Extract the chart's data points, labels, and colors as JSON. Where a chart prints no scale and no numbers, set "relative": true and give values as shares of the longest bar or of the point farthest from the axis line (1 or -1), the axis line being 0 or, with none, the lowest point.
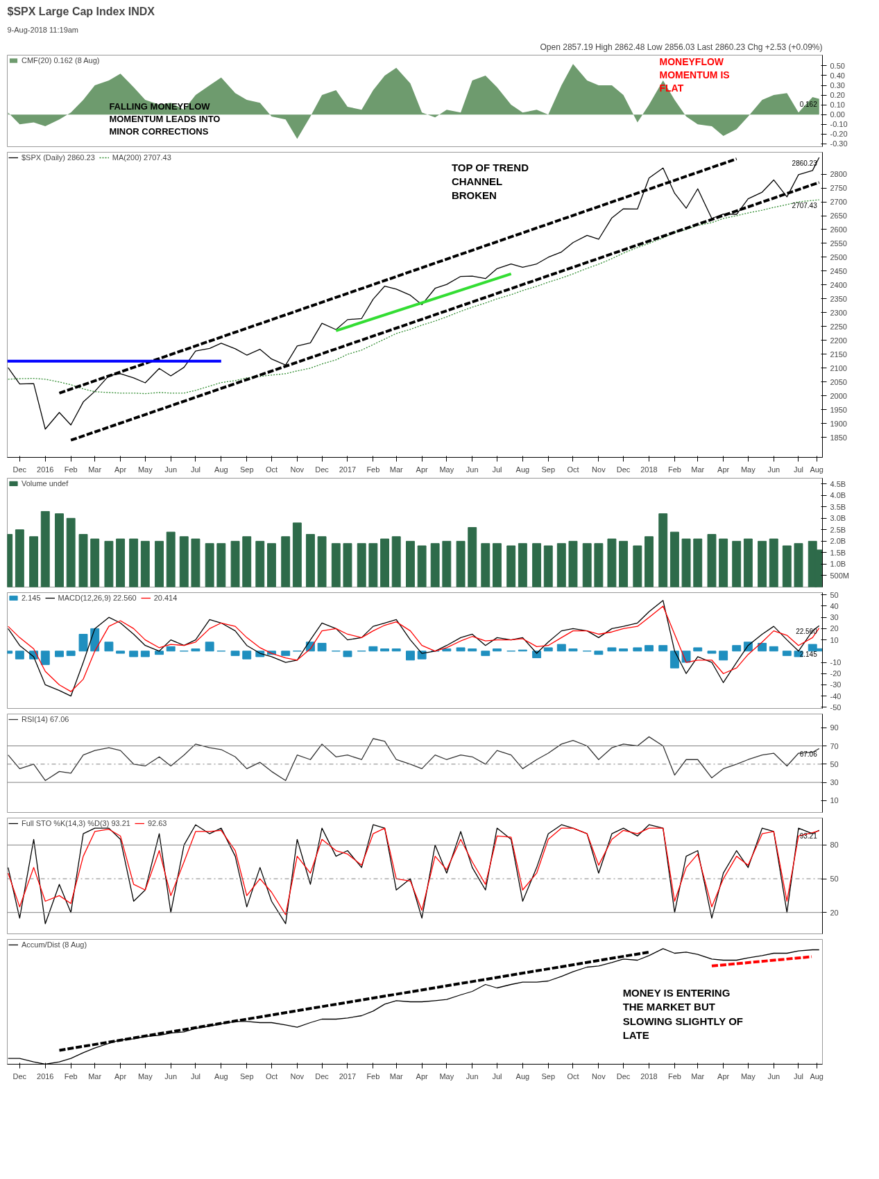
{
  "chart_data": [
    {
      "type": "area",
      "title": "$SPX Large Cap Index INDX",
      "subtitle": "9-Aug-2018 11:19am",
      "x": [
        "2015-12-01",
        "2015-12-15",
        "2016-01-01",
        "2016-01-15",
        "2016-02-01",
        "2016-02-15",
        "2016-03-01",
        "2016-03-15",
        "2016-04-01",
        "2016-04-15",
        "2016-05-01",
        "2016-05-15",
        "2016-06-01",
        "2016-06-15",
        "2016-07-01",
        "2016-07-15",
        "2016-08-01",
        "2016-08-15",
        "2016-09-01",
        "2016-09-15",
        "2016-10-01",
        "2016-10-15",
        "2016-11-01",
        "2016-11-15",
        "2016-12-01",
        "2016-12-15",
        "2017-01-01",
        "2017-01-15",
        "2017-02-01",
        "2017-02-15",
        "2017-03-01",
        "2017-03-15",
        "2017-04-01",
        "2017-04-15",
        "2017-05-01",
        "2017-05-15",
        "2017-06-01",
        "2017-06-15",
        "2017-07-01",
        "2017-07-15",
        "2017-08-01",
        "2017-08-15",
        "2017-09-01",
        "2017-09-15",
        "2017-10-01",
        "2017-10-15",
        "2017-11-01",
        "2017-11-15",
        "2017-12-01",
        "2017-12-15",
        "2018-01-01",
        "2018-01-15",
        "2018-02-01",
        "2018-02-15",
        "2018-03-01",
        "2018-03-15",
        "2018-04-01",
        "2018-04-15",
        "2018-05-01",
        "2018-05-15",
        "2018-06-01",
        "2018-06-15",
        "2018-07-01",
        "2018-07-15",
        "2018-08-01",
        "2018-08-09"
      ],
      "xlim": [
        "2015-11-30",
        "2018-08-13"
      ],
      "ylim": [
        -0.33,
        0.61
      ],
      "yticks": [
        {
          "value": -0.3,
          "label": "-0.30"
        },
        {
          "value": -0.2,
          "label": "-0.20"
        },
        {
          "value": -0.1,
          "label": "-0.10"
        },
        {
          "value": 0,
          "label": "0.00"
        },
        {
          "value": 0.1,
          "label": "0.10"
        },
        {
          "value": 0.2,
          "label": "0.20"
        },
        {
          "value": 0.3,
          "label": "0.30"
        },
        {
          "value": 0.4,
          "label": "0.40"
        },
        {
          "value": 0.5,
          "label": "0.50"
        }
      ],
      "tick_labels": "y",
      "legend": "top left",
      "series": [
        {
          "name": "CMF(20) 0.162 (8 Aug)",
          "color": "#6e9b6e",
          "values": [
            0.02,
            -0.1,
            -0.08,
            -0.12,
            -0.05,
            0.02,
            0.15,
            0.3,
            0.35,
            0.42,
            0.28,
            0.15,
            0.1,
            0.12,
            0.05,
            0.2,
            0.3,
            0.38,
            0.22,
            0.15,
            0.12,
            -0.02,
            -0.05,
            -0.25,
            -0.02,
            0.2,
            0.25,
            0.08,
            0.05,
            0.25,
            0.4,
            0.48,
            0.32,
            0.02,
            -0.03,
            0.05,
            0.02,
            0.35,
            0.4,
            0.28,
            0.1,
            0.02,
            0.05,
            0.0,
            0.3,
            0.52,
            0.35,
            0.3,
            0.3,
            0.2,
            -0.08,
            0.1,
            0.35,
            0.15,
            -0.02,
            -0.1,
            -0.12,
            -0.22,
            -0.15,
            -0.02,
            0.15,
            0.2,
            0.22,
            0.02,
            0.18,
            0.162
          ]
        }
      ],
      "annotations": [
        "Open 2857.19 High 2862.48 Low 2856.03 Last 2860.23 Chg +2.53 (+0.09%)",
        "MONEYFLOW\nMOMENTUM IS\nFLAT",
        "FALLING MONEYFLOW\nMOMENTUM LEADS INTO\nMINOR CORRECTIONS",
        {
          "text": "0.162",
          "x": "2018-08-09",
          "y": 0.162
        }
      ]
    },
    {
      "type": "line",
      "x": [
        "2015-12-01",
        "2015-12-15",
        "2016-01-01",
        "2016-01-15",
        "2016-02-01",
        "2016-02-15",
        "2016-03-01",
        "2016-03-15",
        "2016-04-01",
        "2016-04-15",
        "2016-05-01",
        "2016-05-15",
        "2016-06-01",
        "2016-06-15",
        "2016-07-01",
        "2016-07-15",
        "2016-08-01",
        "2016-08-15",
        "2016-09-01",
        "2016-09-15",
        "2016-10-01",
        "2016-10-15",
        "2016-11-01",
        "2016-11-15",
        "2016-12-01",
        "2016-12-15",
        "2017-01-01",
        "2017-01-15",
        "2017-02-01",
        "2017-02-15",
        "2017-03-01",
        "2017-03-15",
        "2017-04-01",
        "2017-04-15",
        "2017-05-01",
        "2017-05-15",
        "2017-06-01",
        "2017-06-15",
        "2017-07-01",
        "2017-07-15",
        "2017-08-01",
        "2017-08-15",
        "2017-09-01",
        "2017-09-15",
        "2017-10-01",
        "2017-10-15",
        "2017-11-01",
        "2017-11-15",
        "2017-12-01",
        "2017-12-15",
        "2018-01-01",
        "2018-01-15",
        "2018-02-01",
        "2018-02-15",
        "2018-03-01",
        "2018-03-15",
        "2018-04-01",
        "2018-04-15",
        "2018-05-01",
        "2018-05-15",
        "2018-06-01",
        "2018-06-15",
        "2018-07-01",
        "2018-07-15",
        "2018-08-01",
        "2018-08-09"
      ],
      "xlim": [
        "2015-11-30",
        "2018-08-13"
      ],
      "ylim": [
        1778,
        2879
      ],
      "yticks": [
        1850,
        1900,
        1950,
        2000,
        2050,
        2100,
        2150,
        2200,
        2250,
        2300,
        2350,
        2400,
        2450,
        2500,
        2550,
        2600,
        2650,
        2700,
        2750,
        2800
      ],
      "xticks": [
        {
          "value": "2015-12-15",
          "label": "Dec"
        },
        {
          "value": "2016-01-15",
          "label": "2016"
        },
        {
          "value": "2016-02-15",
          "label": "Feb"
        },
        {
          "value": "2016-03-15",
          "label": "Mar"
        },
        {
          "value": "2016-04-15",
          "label": "Apr"
        },
        {
          "value": "2016-05-15",
          "label": "May"
        },
        {
          "value": "2016-06-15",
          "label": "Jun"
        },
        {
          "value": "2016-07-15",
          "label": "Jul"
        },
        {
          "value": "2016-08-15",
          "label": "Aug"
        },
        {
          "value": "2016-09-15",
          "label": "Sep"
        },
        {
          "value": "2016-10-15",
          "label": "Oct"
        },
        {
          "value": "2016-11-15",
          "label": "Nov"
        },
        {
          "value": "2016-12-15",
          "label": "Dec"
        },
        {
          "value": "2017-01-15",
          "label": "2017"
        },
        {
          "value": "2017-02-15",
          "label": "Feb"
        },
        {
          "value": "2017-03-15",
          "label": "Mar"
        },
        {
          "value": "2017-04-15",
          "label": "Apr"
        },
        {
          "value": "2017-05-15",
          "label": "May"
        },
        {
          "value": "2017-06-15",
          "label": "Jun"
        },
        {
          "value": "2017-07-15",
          "label": "Jul"
        },
        {
          "value": "2017-08-15",
          "label": "Aug"
        },
        {
          "value": "2017-09-15",
          "label": "Sep"
        },
        {
          "value": "2017-10-15",
          "label": "Oct"
        },
        {
          "value": "2017-11-15",
          "label": "Nov"
        },
        {
          "value": "2017-12-15",
          "label": "Dec"
        },
        {
          "value": "2018-01-15",
          "label": "2018"
        },
        {
          "value": "2018-02-15",
          "label": "Feb"
        },
        {
          "value": "2018-03-15",
          "label": "Mar"
        },
        {
          "value": "2018-04-15",
          "label": "Apr"
        },
        {
          "value": "2018-05-15",
          "label": "May"
        },
        {
          "value": "2018-06-15",
          "label": "Jun"
        },
        {
          "value": "2018-07-15",
          "label": "Jul"
        },
        {
          "value": "2018-08-06",
          "label": "Aug"
        }
      ],
      "legend": "top left",
      "series": [
        {
          "name": "$SPX (Daily) 2860.23",
          "color": "#000000",
          "values": [
            2102,
            2043,
            2044,
            1880,
            1940,
            1895,
            1978,
            2016,
            2073,
            2080,
            2065,
            2047,
            2099,
            2072,
            2103,
            2162,
            2171,
            2190,
            2170,
            2147,
            2168,
            2133,
            2111,
            2180,
            2191,
            2262,
            2239,
            2275,
            2279,
            2349,
            2396,
            2385,
            2363,
            2329,
            2388,
            2402,
            2431,
            2432,
            2423,
            2459,
            2476,
            2464,
            2476,
            2500,
            2519,
            2553,
            2579,
            2565,
            2642,
            2675,
            2674,
            2786,
            2822,
            2731,
            2677,
            2747,
            2640,
            2656,
            2655,
            2711,
            2735,
            2779,
            2718,
            2798,
            2813,
            2860.23
          ]
        },
        {
          "name": "MA(200) 2707.43",
          "color": "#2e8b2e",
          "line_style": "dotted",
          "values": [
            2060,
            2062,
            2063,
            2060,
            2050,
            2040,
            2025,
            2015,
            2012,
            2010,
            2010,
            2008,
            2012,
            2010,
            2010,
            2020,
            2035,
            2048,
            2055,
            2065,
            2070,
            2075,
            2080,
            2090,
            2100,
            2115,
            2130,
            2150,
            2165,
            2185,
            2205,
            2225,
            2240,
            2255,
            2270,
            2285,
            2305,
            2320,
            2335,
            2350,
            2365,
            2380,
            2395,
            2410,
            2425,
            2440,
            2460,
            2475,
            2495,
            2515,
            2535,
            2550,
            2570,
            2590,
            2600,
            2615,
            2625,
            2640,
            2650,
            2660,
            2670,
            2680,
            2690,
            2700,
            2705,
            2707.43
          ]
        },
        {
          "color": "#000000",
          "line_style": "dashed",
          "x": [
            "2016-02-01",
            "2018-05-01"
          ],
          "values": [
            2010,
            2855
          ]
        },
        {
          "color": "#000000",
          "line_style": "dashed",
          "x": [
            "2016-02-15",
            "2018-08-09"
          ],
          "values": [
            1840,
            2770
          ]
        },
        {
          "color": "#0000ff",
          "line_style": "solid",
          "x": [
            "2015-11-30",
            "2016-08-15"
          ],
          "values": [
            2125,
            2125
          ]
        },
        {
          "color": "#33dd33",
          "line_style": "solid",
          "x": [
            "2017-01-01",
            "2017-08-01"
          ],
          "values": [
            2235,
            2440
          ]
        }
      ],
      "annotations": [
        "TOP OF TREND\nCHANNEL\nBROKEN",
        {
          "text": "2860.23",
          "x": "2018-08-09",
          "y": 2860.23
        },
        {
          "text": "2707.43",
          "x": "2018-08-09",
          "y": 2707.43
        }
      ]
    },
    {
      "type": "bar",
      "x": [
        "2015-12-01",
        "2015-12-15",
        "2016-01-01",
        "2016-01-15",
        "2016-02-01",
        "2016-02-15",
        "2016-03-01",
        "2016-03-15",
        "2016-04-01",
        "2016-04-15",
        "2016-05-01",
        "2016-05-15",
        "2016-06-01",
        "2016-06-15",
        "2016-07-01",
        "2016-07-15",
        "2016-08-01",
        "2016-08-15",
        "2016-09-01",
        "2016-09-15",
        "2016-10-01",
        "2016-10-15",
        "2016-11-01",
        "2016-11-15",
        "2016-12-01",
        "2016-12-15",
        "2017-01-01",
        "2017-01-15",
        "2017-02-01",
        "2017-02-15",
        "2017-03-01",
        "2017-03-15",
        "2017-04-01",
        "2017-04-15",
        "2017-05-01",
        "2017-05-15",
        "2017-06-01",
        "2017-06-15",
        "2017-07-01",
        "2017-07-15",
        "2017-08-01",
        "2017-08-15",
        "2017-09-01",
        "2017-09-15",
        "2017-10-01",
        "2017-10-15",
        "2017-11-01",
        "2017-11-15",
        "2017-12-01",
        "2017-12-15",
        "2018-01-01",
        "2018-01-15",
        "2018-02-01",
        "2018-02-15",
        "2018-03-01",
        "2018-03-15",
        "2018-04-01",
        "2018-04-15",
        "2018-05-01",
        "2018-05-15",
        "2018-06-01",
        "2018-06-15",
        "2018-07-01",
        "2018-07-15",
        "2018-08-01",
        "2018-08-09"
      ],
      "xlim": [
        "2015-11-30",
        "2018-08-13"
      ],
      "ylim": [
        0,
        4750000000
      ],
      "yticks": [
        {
          "value": 500000000,
          "label": "500M"
        },
        {
          "value": 1000000000,
          "label": "1.0B"
        },
        {
          "value": 1500000000,
          "label": "1.5B"
        },
        {
          "value": 2000000000,
          "label": "2.0B"
        },
        {
          "value": 2500000000,
          "label": "2.5B"
        },
        {
          "value": 3000000000,
          "label": "3.0B"
        },
        {
          "value": 3500000000,
          "label": "3.5B"
        },
        {
          "value": 4000000000,
          "label": "4.0B"
        },
        {
          "value": 4500000000,
          "label": "4.5B"
        }
      ],
      "tick_labels": "y",
      "legend": "top left",
      "series": [
        {
          "name": "Volume undef",
          "color": "#2e6b4a",
          "values": [
            2300000000,
            2500000000,
            2200000000,
            3300000000,
            3200000000,
            3000000000,
            2300000000,
            2100000000,
            2000000000,
            2100000000,
            2100000000,
            2000000000,
            2000000000,
            2400000000,
            2200000000,
            2100000000,
            1900000000,
            1900000000,
            2000000000,
            2200000000,
            2000000000,
            1900000000,
            2200000000,
            2800000000,
            2300000000,
            2200000000,
            1900000000,
            1900000000,
            1900000000,
            1900000000,
            2100000000,
            2200000000,
            2000000000,
            1800000000,
            1900000000,
            2000000000,
            2000000000,
            2600000000,
            1900000000,
            1900000000,
            1800000000,
            1900000000,
            1900000000,
            1800000000,
            1900000000,
            2000000000,
            1900000000,
            1900000000,
            2100000000,
            2000000000,
            1800000000,
            2200000000,
            3200000000,
            2400000000,
            2100000000,
            2100000000,
            2300000000,
            2100000000,
            2000000000,
            2100000000,
            2000000000,
            2100000000,
            1800000000,
            1900000000,
            2000000000,
            1620000000
          ]
        }
      ]
    },
    {
      "type": "line",
      "x": [
        "2015-12-01",
        "2015-12-15",
        "2016-01-01",
        "2016-01-15",
        "2016-02-01",
        "2016-02-15",
        "2016-03-01",
        "2016-03-15",
        "2016-04-01",
        "2016-04-15",
        "2016-05-01",
        "2016-05-15",
        "2016-06-01",
        "2016-06-15",
        "2016-07-01",
        "2016-07-15",
        "2016-08-01",
        "2016-08-15",
        "2016-09-01",
        "2016-09-15",
        "2016-10-01",
        "2016-10-15",
        "2016-11-01",
        "2016-11-15",
        "2016-12-01",
        "2016-12-15",
        "2017-01-01",
        "2017-01-15",
        "2017-02-01",
        "2017-02-15",
        "2017-03-01",
        "2017-03-15",
        "2017-04-01",
        "2017-04-15",
        "2017-05-01",
        "2017-05-15",
        "2017-06-01",
        "2017-06-15",
        "2017-07-01",
        "2017-07-15",
        "2017-08-01",
        "2017-08-15",
        "2017-09-01",
        "2017-09-15",
        "2017-10-01",
        "2017-10-15",
        "2017-11-01",
        "2017-11-15",
        "2017-12-01",
        "2017-12-15",
        "2018-01-01",
        "2018-01-15",
        "2018-02-01",
        "2018-02-15",
        "2018-03-01",
        "2018-03-15",
        "2018-04-01",
        "2018-04-15",
        "2018-05-01",
        "2018-05-15",
        "2018-06-01",
        "2018-06-15",
        "2018-07-01",
        "2018-07-15",
        "2018-08-01",
        "2018-08-09"
      ],
      "xlim": [
        "2015-11-30",
        "2018-08-13"
      ],
      "ylim": [
        -51,
        52
      ],
      "yticks": [
        -50,
        -40,
        -30,
        -20,
        -10,
        10,
        20,
        30,
        40,
        50
      ],
      "tick_labels": "y",
      "legend": "top left",
      "series": [
        {
          "name": "2.145",
          "type": "bar",
          "color": "#1f8fbf",
          "values": [
            -2,
            -7,
            -7,
            -12,
            -5,
            -4,
            15,
            20,
            8,
            -2,
            -5,
            -5,
            -3,
            4,
            0,
            2,
            8,
            0,
            -4,
            -7,
            -5,
            -3,
            -4,
            0,
            8,
            7,
            0,
            -5,
            0,
            4,
            2,
            2,
            -8,
            -7,
            0,
            2,
            3,
            2,
            -4,
            2,
            0,
            1,
            -6,
            3,
            6,
            2,
            0,
            -3,
            3,
            2,
            3,
            5,
            5,
            -15,
            -10,
            3,
            -2,
            -8,
            5,
            8,
            7,
            4,
            -4,
            -5,
            6,
            2.145
          ]
        },
        {
          "name": "MACD(12,26,9) 22.560",
          "color": "#000000",
          "values": [
            20,
            5,
            -5,
            -30,
            -35,
            -40,
            -10,
            20,
            30,
            25,
            15,
            5,
            0,
            10,
            5,
            10,
            28,
            25,
            18,
            5,
            -2,
            -5,
            -10,
            -8,
            10,
            25,
            20,
            10,
            12,
            22,
            25,
            28,
            10,
            -2,
            0,
            5,
            12,
            15,
            5,
            12,
            10,
            12,
            -2,
            8,
            18,
            20,
            18,
            12,
            20,
            22,
            25,
            35,
            45,
            0,
            -20,
            -5,
            -10,
            -28,
            -10,
            5,
            15,
            22,
            10,
            0,
            18,
            22.56
          ]
        },
        {
          "name": "20.414",
          "color": "#ff0000",
          "values": [
            22,
            12,
            2,
            -18,
            -30,
            -36,
            -25,
            0,
            22,
            27,
            20,
            10,
            3,
            6,
            5,
            8,
            20,
            25,
            22,
            12,
            3,
            -2,
            -6,
            -8,
            2,
            18,
            20,
            15,
            12,
            18,
            23,
            26,
            18,
            5,
            0,
            3,
            9,
            13,
            9,
            10,
            10,
            11,
            4,
            5,
            12,
            18,
            18,
            15,
            17,
            20,
            22,
            30,
            40,
            15,
            -10,
            -8,
            -8,
            -20,
            -15,
            -3,
            8,
            18,
            14,
            5,
            12,
            20.414
          ]
        }
      ],
      "annotations": [
        {
          "text": "22.560",
          "x": "2018-08-09",
          "y": 22.56
        },
        {
          "text": "2.145",
          "x": "2018-08-09",
          "y": 2.145
        }
      ]
    },
    {
      "type": "line",
      "x": [
        "2015-12-01",
        "2015-12-15",
        "2016-01-01",
        "2016-01-15",
        "2016-02-01",
        "2016-02-15",
        "2016-03-01",
        "2016-03-15",
        "2016-04-01",
        "2016-04-15",
        "2016-05-01",
        "2016-05-15",
        "2016-06-01",
        "2016-06-15",
        "2016-07-01",
        "2016-07-15",
        "2016-08-01",
        "2016-08-15",
        "2016-09-01",
        "2016-09-15",
        "2016-10-01",
        "2016-10-15",
        "2016-11-01",
        "2016-11-15",
        "2016-12-01",
        "2016-12-15",
        "2017-01-01",
        "2017-01-15",
        "2017-02-01",
        "2017-02-15",
        "2017-03-01",
        "2017-03-15",
        "2017-04-01",
        "2017-04-15",
        "2017-05-01",
        "2017-05-15",
        "2017-06-01",
        "2017-06-15",
        "2017-07-01",
        "2017-07-15",
        "2017-08-01",
        "2017-08-15",
        "2017-09-01",
        "2017-09-15",
        "2017-10-01",
        "2017-10-15",
        "2017-11-01",
        "2017-11-15",
        "2017-12-01",
        "2017-12-15",
        "2018-01-01",
        "2018-01-15",
        "2018-02-01",
        "2018-02-15",
        "2018-03-01",
        "2018-03-15",
        "2018-04-01",
        "2018-04-15",
        "2018-05-01",
        "2018-05-15",
        "2018-06-01",
        "2018-06-15",
        "2018-07-01",
        "2018-07-15",
        "2018-08-01",
        "2018-08-09"
      ],
      "xlim": [
        "2015-11-30",
        "2018-08-13"
      ],
      "ylim": [
        -3,
        105
      ],
      "yticks": [
        10,
        30,
        50,
        70,
        90
      ],
      "tick_labels": "y",
      "legend": "top left",
      "ref_lines": [
        {
          "axis": "y",
          "value": 70,
          "color": "#808080",
          "line_style": "solid"
        },
        {
          "axis": "y",
          "value": 50,
          "color": "#808080",
          "line_style": "dashdot"
        },
        {
          "axis": "y",
          "value": 30,
          "color": "#808080",
          "line_style": "solid"
        }
      ],
      "series": [
        {
          "name": "RSI(14) 67.06",
          "color": "#333333",
          "values": [
            60,
            45,
            50,
            32,
            42,
            40,
            60,
            65,
            68,
            65,
            50,
            48,
            58,
            48,
            60,
            72,
            68,
            66,
            58,
            45,
            52,
            42,
            32,
            60,
            55,
            72,
            58,
            60,
            55,
            78,
            75,
            55,
            50,
            45,
            60,
            55,
            60,
            58,
            50,
            65,
            60,
            45,
            55,
            62,
            72,
            76,
            70,
            55,
            68,
            72,
            70,
            80,
            70,
            38,
            55,
            55,
            35,
            45,
            50,
            55,
            60,
            62,
            48,
            62,
            63,
            67.06
          ]
        }
      ],
      "annotations": [
        {
          "text": "67.06",
          "x": "2018-08-09",
          "y": 67.06
        }
      ]
    },
    {
      "type": "line",
      "x": [
        "2015-12-01",
        "2015-12-15",
        "2016-01-01",
        "2016-01-15",
        "2016-02-01",
        "2016-02-15",
        "2016-03-01",
        "2016-03-15",
        "2016-04-01",
        "2016-04-15",
        "2016-05-01",
        "2016-05-15",
        "2016-06-01",
        "2016-06-15",
        "2016-07-01",
        "2016-07-15",
        "2016-08-01",
        "2016-08-15",
        "2016-09-01",
        "2016-09-15",
        "2016-10-01",
        "2016-10-15",
        "2016-11-01",
        "2016-11-15",
        "2016-12-01",
        "2016-12-15",
        "2017-01-01",
        "2017-01-15",
        "2017-02-01",
        "2017-02-15",
        "2017-03-01",
        "2017-03-15",
        "2017-04-01",
        "2017-04-15",
        "2017-05-01",
        "2017-05-15",
        "2017-06-01",
        "2017-06-15",
        "2017-07-01",
        "2017-07-15",
        "2017-08-01",
        "2017-08-15",
        "2017-09-01",
        "2017-09-15",
        "2017-10-01",
        "2017-10-15",
        "2017-11-01",
        "2017-11-15",
        "2017-12-01",
        "2017-12-15",
        "2018-01-01",
        "2018-01-15",
        "2018-02-01",
        "2018-02-15",
        "2018-03-01",
        "2018-03-15",
        "2018-04-01",
        "2018-04-15",
        "2018-05-01",
        "2018-05-15",
        "2018-06-01",
        "2018-06-15",
        "2018-07-01",
        "2018-07-15",
        "2018-08-01",
        "2018-08-09"
      ],
      "xlim": [
        "2015-11-30",
        "2018-08-13"
      ],
      "ylim": [
        1,
        104
      ],
      "yticks": [
        20,
        50,
        80
      ],
      "tick_labels": "y",
      "legend": "top left",
      "ref_lines": [
        {
          "axis": "y",
          "value": 80,
          "color": "#808080",
          "line_style": "solid"
        },
        {
          "axis": "y",
          "value": 50,
          "color": "#808080",
          "line_style": "dashdot"
        },
        {
          "axis": "y",
          "value": 20,
          "color": "#808080",
          "line_style": "solid"
        }
      ],
      "series": [
        {
          "name": "Full STO %K(14,3) %D(3) 93.21",
          "color": "#000000",
          "values": [
            60,
            15,
            85,
            10,
            45,
            20,
            90,
            95,
            95,
            85,
            30,
            40,
            90,
            20,
            80,
            98,
            90,
            95,
            70,
            25,
            60,
            30,
            10,
            85,
            45,
            95,
            70,
            75,
            60,
            98,
            95,
            40,
            50,
            15,
            80,
            55,
            92,
            60,
            40,
            95,
            85,
            30,
            60,
            90,
            98,
            95,
            90,
            55,
            90,
            95,
            88,
            98,
            95,
            20,
            70,
            75,
            15,
            55,
            75,
            60,
            95,
            92,
            20,
            95,
            90,
            93.21
          ]
        },
        {
          "name": "92.63",
          "color": "#ff0000",
          "values": [
            55,
            25,
            60,
            30,
            35,
            28,
            70,
            92,
            94,
            88,
            45,
            40,
            75,
            35,
            65,
            92,
            92,
            93,
            75,
            35,
            50,
            38,
            18,
            70,
            55,
            85,
            75,
            72,
            62,
            90,
            95,
            50,
            48,
            22,
            70,
            58,
            85,
            65,
            45,
            88,
            87,
            40,
            55,
            85,
            95,
            95,
            90,
            62,
            85,
            93,
            90,
            95,
            95,
            30,
            60,
            72,
            25,
            50,
            70,
            62,
            90,
            92,
            30,
            88,
            91,
            92.63
          ]
        }
      ],
      "annotations": [
        {
          "text": "93.21",
          "x": "2018-08-09",
          "y": 93.21
        }
      ]
    },
    {
      "type": "line",
      "relative": true,
      "tick_labels": "x",
      "x": [
        "2015-12-01",
        "2015-12-15",
        "2016-01-01",
        "2016-01-15",
        "2016-02-01",
        "2016-02-15",
        "2016-03-01",
        "2016-03-15",
        "2016-04-01",
        "2016-04-15",
        "2016-05-01",
        "2016-05-15",
        "2016-06-01",
        "2016-06-15",
        "2016-07-01",
        "2016-07-15",
        "2016-08-01",
        "2016-08-15",
        "2016-09-01",
        "2016-09-15",
        "2016-10-01",
        "2016-10-15",
        "2016-11-01",
        "2016-11-15",
        "2016-12-01",
        "2016-12-15",
        "2017-01-01",
        "2017-01-15",
        "2017-02-01",
        "2017-02-15",
        "2017-03-01",
        "2017-03-15",
        "2017-04-01",
        "2017-04-15",
        "2017-05-01",
        "2017-05-15",
        "2017-06-01",
        "2017-06-15",
        "2017-07-01",
        "2017-07-15",
        "2017-08-01",
        "2017-08-15",
        "2017-09-01",
        "2017-09-15",
        "2017-10-01",
        "2017-10-15",
        "2017-11-01",
        "2017-11-15",
        "2017-12-01",
        "2017-12-15",
        "2018-01-01",
        "2018-01-15",
        "2018-02-01",
        "2018-02-15",
        "2018-03-01",
        "2018-03-15",
        "2018-04-01",
        "2018-04-15",
        "2018-05-01",
        "2018-05-15",
        "2018-06-01",
        "2018-06-15",
        "2018-07-01",
        "2018-07-15",
        "2018-08-01",
        "2018-08-09"
      ],
      "xlim": [
        "2015-11-30",
        "2018-08-13"
      ],
      "xticks": [
        {
          "value": "2015-12-15",
          "label": "Dec"
        },
        {
          "value": "2016-01-15",
          "label": "2016"
        },
        {
          "value": "2016-02-15",
          "label": "Feb"
        },
        {
          "value": "2016-03-15",
          "label": "Mar"
        },
        {
          "value": "2016-04-15",
          "label": "Apr"
        },
        {
          "value": "2016-05-15",
          "label": "May"
        },
        {
          "value": "2016-06-15",
          "label": "Jun"
        },
        {
          "value": "2016-07-15",
          "label": "Jul"
        },
        {
          "value": "2016-08-15",
          "label": "Aug"
        },
        {
          "value": "2016-09-15",
          "label": "Sep"
        },
        {
          "value": "2016-10-15",
          "label": "Oct"
        },
        {
          "value": "2016-11-15",
          "label": "Nov"
        },
        {
          "value": "2016-12-15",
          "label": "Dec"
        },
        {
          "value": "2017-01-15",
          "label": "2017"
        },
        {
          "value": "2017-02-15",
          "label": "Feb"
        },
        {
          "value": "2017-03-15",
          "label": "Mar"
        },
        {
          "value": "2017-04-15",
          "label": "Apr"
        },
        {
          "value": "2017-05-15",
          "label": "May"
        },
        {
          "value": "2017-06-15",
          "label": "Jun"
        },
        {
          "value": "2017-07-15",
          "label": "Jul"
        },
        {
          "value": "2017-08-15",
          "label": "Aug"
        },
        {
          "value": "2017-09-15",
          "label": "Sep"
        },
        {
          "value": "2017-10-15",
          "label": "Oct"
        },
        {
          "value": "2017-11-15",
          "label": "Nov"
        },
        {
          "value": "2017-12-15",
          "label": "Dec"
        },
        {
          "value": "2018-01-15",
          "label": "2018"
        },
        {
          "value": "2018-02-15",
          "label": "Feb"
        },
        {
          "value": "2018-03-15",
          "label": "Mar"
        },
        {
          "value": "2018-04-15",
          "label": "Apr"
        },
        {
          "value": "2018-05-15",
          "label": "May"
        },
        {
          "value": "2018-06-15",
          "label": "Jun"
        },
        {
          "value": "2018-07-15",
          "label": "Jul"
        },
        {
          "value": "2018-08-06",
          "label": "Aug"
        }
      ],
      "legend": "top left",
      "series": [
        {
          "name": "Accum/Dist (8 Aug)",
          "color": "#000000",
          "values": [
            0.05,
            0.05,
            0.02,
            0.0,
            0.02,
            0.05,
            0.1,
            0.14,
            0.18,
            0.21,
            0.22,
            0.24,
            0.25,
            0.27,
            0.28,
            0.31,
            0.33,
            0.35,
            0.37,
            0.37,
            0.36,
            0.36,
            0.34,
            0.32,
            0.36,
            0.39,
            0.39,
            0.4,
            0.42,
            0.46,
            0.52,
            0.55,
            0.54,
            0.54,
            0.55,
            0.56,
            0.6,
            0.63,
            0.69,
            0.66,
            0.69,
            0.71,
            0.71,
            0.72,
            0.76,
            0.8,
            0.84,
            0.85,
            0.88,
            0.91,
            0.9,
            0.94,
            1.0,
            0.96,
            0.97,
            0.95,
            0.91,
            0.9,
            0.9,
            0.92,
            0.94,
            0.96,
            0.96,
            0.98,
            0.99,
            0.99
          ]
        },
        {
          "color": "#000000",
          "line_style": "dashed",
          "x": [
            "2016-02-01",
            "2018-01-15"
          ],
          "values": [
            0.12,
            0.97
          ]
        },
        {
          "color": "#ff0000",
          "line_style": "dashed",
          "x": [
            "2018-04-01",
            "2018-07-31"
          ],
          "values": [
            0.85,
            0.93
          ]
        }
      ],
      "annotations": [
        "MONEY IS ENTERING\nTHE MARKET BUT\nSLOWING SLIGHTLY OF\nLATE"
      ]
    }
  ]
}
